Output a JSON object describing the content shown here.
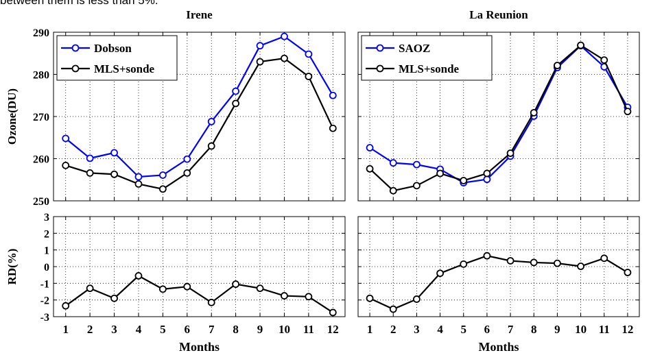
{
  "caption_fragment": "between them is less than 5%.",
  "chart_data": [
    {
      "type": "line",
      "title": "Irene",
      "xlabel": "",
      "ylabel": "Ozone(DU)",
      "x": [
        1,
        2,
        3,
        4,
        5,
        6,
        7,
        8,
        9,
        10,
        11,
        12
      ],
      "xlim": [
        0.5,
        12.5
      ],
      "ylim": [
        250,
        290
      ],
      "yticks": [
        250,
        260,
        270,
        280,
        290
      ],
      "grid": true,
      "legend_position": "top-left",
      "series": [
        {
          "name": "Dobson",
          "color": "#0000ff",
          "values": [
            264.8,
            260.1,
            261.4,
            255.7,
            256.1,
            259.9,
            268.8,
            276.0,
            286.8,
            289.0,
            284.8,
            275.0
          ]
        },
        {
          "name": "MLS+sonde",
          "color": "#000000",
          "values": [
            258.4,
            256.6,
            256.3,
            254.0,
            252.8,
            256.6,
            263.0,
            273.1,
            283.0,
            283.8,
            279.5,
            267.2
          ]
        }
      ]
    },
    {
      "type": "line",
      "title": "La Reunion",
      "xlabel": "",
      "ylabel": "",
      "x": [
        1,
        2,
        3,
        4,
        5,
        6,
        7,
        8,
        9,
        10,
        11,
        12
      ],
      "xlim": [
        0.5,
        12.5
      ],
      "ylim": [
        250,
        290
      ],
      "yticks": [
        250,
        260,
        270,
        280,
        290
      ],
      "grid": true,
      "legend_position": "top-left",
      "series": [
        {
          "name": "SAOZ",
          "color": "#0000ff",
          "values": [
            262.6,
            259.0,
            258.6,
            257.5,
            254.3,
            255.1,
            260.6,
            270.1,
            281.6,
            286.8,
            281.8,
            272.2
          ]
        },
        {
          "name": "MLS+sonde",
          "color": "#000000",
          "values": [
            257.6,
            252.4,
            253.6,
            256.5,
            254.8,
            256.5,
            261.3,
            270.9,
            282.1,
            286.9,
            283.4,
            271.2
          ]
        }
      ]
    },
    {
      "type": "line",
      "title": "",
      "xlabel": "Months",
      "ylabel": "RD(%)",
      "x": [
        1,
        2,
        3,
        4,
        5,
        6,
        7,
        8,
        9,
        10,
        11,
        12
      ],
      "xlim": [
        0.5,
        12.5
      ],
      "ylim": [
        -3,
        3
      ],
      "yticks": [
        -3,
        -2,
        -1,
        0,
        1,
        2,
        3
      ],
      "grid": true,
      "series": [
        {
          "color": "#000000",
          "values": [
            -2.35,
            -1.3,
            -1.9,
            -0.55,
            -1.35,
            -1.2,
            -2.15,
            -1.05,
            -1.3,
            -1.75,
            -1.8,
            -2.75
          ]
        }
      ]
    },
    {
      "type": "line",
      "title": "",
      "xlabel": "Months",
      "ylabel": "",
      "x": [
        1,
        2,
        3,
        4,
        5,
        6,
        7,
        8,
        9,
        10,
        11,
        12
      ],
      "xlim": [
        0.5,
        12.5
      ],
      "ylim": [
        -3,
        3
      ],
      "yticks": [
        -3,
        -2,
        -1,
        0,
        1,
        2,
        3
      ],
      "grid": true,
      "series": [
        {
          "color": "#000000",
          "values": [
            -1.9,
            -2.55,
            -1.95,
            -0.4,
            0.15,
            0.65,
            0.35,
            0.25,
            0.2,
            0.02,
            0.5,
            -0.35
          ]
        }
      ]
    }
  ]
}
